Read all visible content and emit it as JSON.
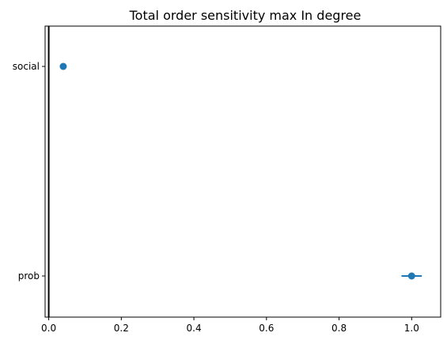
{
  "chart_data": {
    "type": "scatter",
    "title": "Total order sensitivity max In degree",
    "xlabel": "",
    "ylabel": "",
    "xlim": [
      -0.01,
      1.08
    ],
    "x_ticks": [
      0.0,
      0.2,
      0.4,
      0.6,
      0.8,
      1.0
    ],
    "x_tick_labels": [
      "0.0",
      "0.2",
      "0.4",
      "0.6",
      "0.8",
      "1.0"
    ],
    "categories": [
      "social",
      "prob"
    ],
    "points": [
      {
        "category": "social",
        "value": 0.04,
        "error": 0.0
      },
      {
        "category": "prob",
        "value": 1.0,
        "error": 0.028
      }
    ],
    "vertical_line_x": 0.0,
    "grid": false,
    "colors": {
      "marker": "#1f77b4",
      "axis": "#000000",
      "vline": "#000000"
    }
  }
}
